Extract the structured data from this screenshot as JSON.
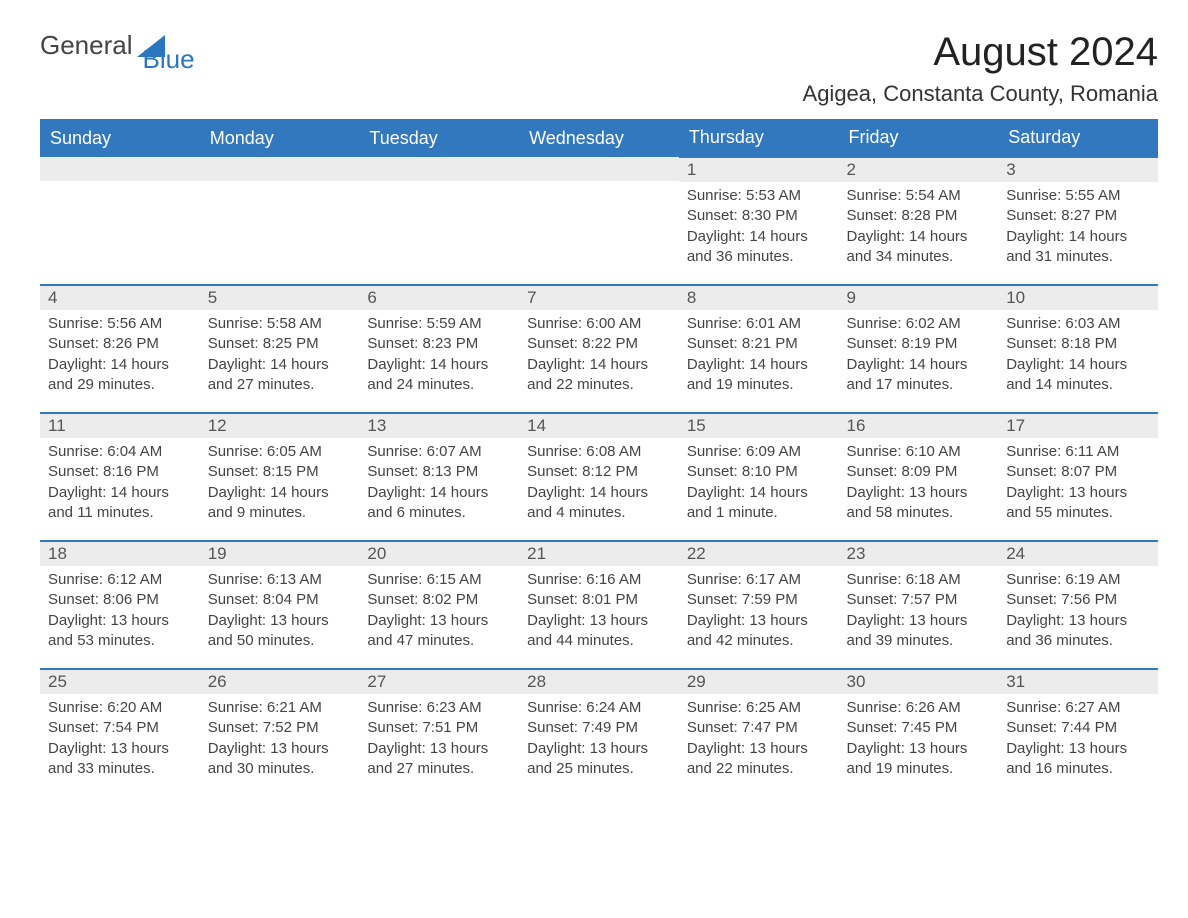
{
  "logo": {
    "general": "General",
    "blue": "Blue"
  },
  "header": {
    "month_title": "August 2024",
    "location": "Agigea, Constanta County, Romania"
  },
  "colors": {
    "header_bg": "#3278be",
    "header_text": "#ffffff",
    "daynum_bg": "#ececec",
    "row_divider": "#3278be",
    "body_text": "#444444",
    "page_bg": "#ffffff"
  },
  "calendar": {
    "day_headers": [
      "Sunday",
      "Monday",
      "Tuesday",
      "Wednesday",
      "Thursday",
      "Friday",
      "Saturday"
    ],
    "leading_blanks": 4,
    "days": [
      {
        "n": "1",
        "sunrise": "Sunrise: 5:53 AM",
        "sunset": "Sunset: 8:30 PM",
        "daylight": "Daylight: 14 hours and 36 minutes."
      },
      {
        "n": "2",
        "sunrise": "Sunrise: 5:54 AM",
        "sunset": "Sunset: 8:28 PM",
        "daylight": "Daylight: 14 hours and 34 minutes."
      },
      {
        "n": "3",
        "sunrise": "Sunrise: 5:55 AM",
        "sunset": "Sunset: 8:27 PM",
        "daylight": "Daylight: 14 hours and 31 minutes."
      },
      {
        "n": "4",
        "sunrise": "Sunrise: 5:56 AM",
        "sunset": "Sunset: 8:26 PM",
        "daylight": "Daylight: 14 hours and 29 minutes."
      },
      {
        "n": "5",
        "sunrise": "Sunrise: 5:58 AM",
        "sunset": "Sunset: 8:25 PM",
        "daylight": "Daylight: 14 hours and 27 minutes."
      },
      {
        "n": "6",
        "sunrise": "Sunrise: 5:59 AM",
        "sunset": "Sunset: 8:23 PM",
        "daylight": "Daylight: 14 hours and 24 minutes."
      },
      {
        "n": "7",
        "sunrise": "Sunrise: 6:00 AM",
        "sunset": "Sunset: 8:22 PM",
        "daylight": "Daylight: 14 hours and 22 minutes."
      },
      {
        "n": "8",
        "sunrise": "Sunrise: 6:01 AM",
        "sunset": "Sunset: 8:21 PM",
        "daylight": "Daylight: 14 hours and 19 minutes."
      },
      {
        "n": "9",
        "sunrise": "Sunrise: 6:02 AM",
        "sunset": "Sunset: 8:19 PM",
        "daylight": "Daylight: 14 hours and 17 minutes."
      },
      {
        "n": "10",
        "sunrise": "Sunrise: 6:03 AM",
        "sunset": "Sunset: 8:18 PM",
        "daylight": "Daylight: 14 hours and 14 minutes."
      },
      {
        "n": "11",
        "sunrise": "Sunrise: 6:04 AM",
        "sunset": "Sunset: 8:16 PM",
        "daylight": "Daylight: 14 hours and 11 minutes."
      },
      {
        "n": "12",
        "sunrise": "Sunrise: 6:05 AM",
        "sunset": "Sunset: 8:15 PM",
        "daylight": "Daylight: 14 hours and 9 minutes."
      },
      {
        "n": "13",
        "sunrise": "Sunrise: 6:07 AM",
        "sunset": "Sunset: 8:13 PM",
        "daylight": "Daylight: 14 hours and 6 minutes."
      },
      {
        "n": "14",
        "sunrise": "Sunrise: 6:08 AM",
        "sunset": "Sunset: 8:12 PM",
        "daylight": "Daylight: 14 hours and 4 minutes."
      },
      {
        "n": "15",
        "sunrise": "Sunrise: 6:09 AM",
        "sunset": "Sunset: 8:10 PM",
        "daylight": "Daylight: 14 hours and 1 minute."
      },
      {
        "n": "16",
        "sunrise": "Sunrise: 6:10 AM",
        "sunset": "Sunset: 8:09 PM",
        "daylight": "Daylight: 13 hours and 58 minutes."
      },
      {
        "n": "17",
        "sunrise": "Sunrise: 6:11 AM",
        "sunset": "Sunset: 8:07 PM",
        "daylight": "Daylight: 13 hours and 55 minutes."
      },
      {
        "n": "18",
        "sunrise": "Sunrise: 6:12 AM",
        "sunset": "Sunset: 8:06 PM",
        "daylight": "Daylight: 13 hours and 53 minutes."
      },
      {
        "n": "19",
        "sunrise": "Sunrise: 6:13 AM",
        "sunset": "Sunset: 8:04 PM",
        "daylight": "Daylight: 13 hours and 50 minutes."
      },
      {
        "n": "20",
        "sunrise": "Sunrise: 6:15 AM",
        "sunset": "Sunset: 8:02 PM",
        "daylight": "Daylight: 13 hours and 47 minutes."
      },
      {
        "n": "21",
        "sunrise": "Sunrise: 6:16 AM",
        "sunset": "Sunset: 8:01 PM",
        "daylight": "Daylight: 13 hours and 44 minutes."
      },
      {
        "n": "22",
        "sunrise": "Sunrise: 6:17 AM",
        "sunset": "Sunset: 7:59 PM",
        "daylight": "Daylight: 13 hours and 42 minutes."
      },
      {
        "n": "23",
        "sunrise": "Sunrise: 6:18 AM",
        "sunset": "Sunset: 7:57 PM",
        "daylight": "Daylight: 13 hours and 39 minutes."
      },
      {
        "n": "24",
        "sunrise": "Sunrise: 6:19 AM",
        "sunset": "Sunset: 7:56 PM",
        "daylight": "Daylight: 13 hours and 36 minutes."
      },
      {
        "n": "25",
        "sunrise": "Sunrise: 6:20 AM",
        "sunset": "Sunset: 7:54 PM",
        "daylight": "Daylight: 13 hours and 33 minutes."
      },
      {
        "n": "26",
        "sunrise": "Sunrise: 6:21 AM",
        "sunset": "Sunset: 7:52 PM",
        "daylight": "Daylight: 13 hours and 30 minutes."
      },
      {
        "n": "27",
        "sunrise": "Sunrise: 6:23 AM",
        "sunset": "Sunset: 7:51 PM",
        "daylight": "Daylight: 13 hours and 27 minutes."
      },
      {
        "n": "28",
        "sunrise": "Sunrise: 6:24 AM",
        "sunset": "Sunset: 7:49 PM",
        "daylight": "Daylight: 13 hours and 25 minutes."
      },
      {
        "n": "29",
        "sunrise": "Sunrise: 6:25 AM",
        "sunset": "Sunset: 7:47 PM",
        "daylight": "Daylight: 13 hours and 22 minutes."
      },
      {
        "n": "30",
        "sunrise": "Sunrise: 6:26 AM",
        "sunset": "Sunset: 7:45 PM",
        "daylight": "Daylight: 13 hours and 19 minutes."
      },
      {
        "n": "31",
        "sunrise": "Sunrise: 6:27 AM",
        "sunset": "Sunset: 7:44 PM",
        "daylight": "Daylight: 13 hours and 16 minutes."
      }
    ]
  }
}
